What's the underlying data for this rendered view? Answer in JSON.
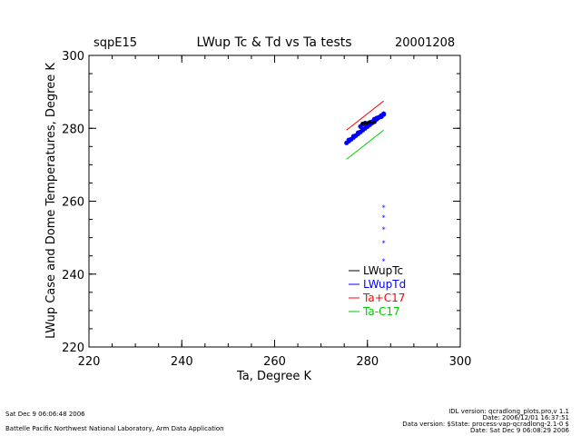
{
  "header": {
    "site": "sqpE15",
    "title": "LWup Tc & Td vs Ta tests",
    "date": "20001208"
  },
  "footer": {
    "left_line1": "Sat Dec  9 06:06:48 2006",
    "left_line2": "Battelle Pacific Northwest National Laboratory, Arm Data Application",
    "right_line1": "IDL version: qcradlong_plots.pro,v 1.1",
    "right_line2": "Date: 2006/12/01 16:37:51",
    "right_line3": "Data version: $State: process-vap-qcradlong-2.1-0 $",
    "right_line4": "Date: Sat Dec  9 06:08:29 2006"
  },
  "colors": {
    "tc": "#000000",
    "td": "#0000ff",
    "ta_plus": "#ff0000",
    "ta_minus": "#00cc00"
  },
  "chart_data": {
    "type": "scatter",
    "xlabel": "Ta, Degree K",
    "ylabel": "LWup Case and Dome Temperatures, Degree K",
    "xlim": [
      220,
      300
    ],
    "ylim": [
      220,
      300
    ],
    "xticks": [
      "220",
      "240",
      "260",
      "280",
      "300"
    ],
    "yticks": [
      "220",
      "240",
      "260",
      "280",
      "300"
    ],
    "grid": false,
    "legend_position": "lower-right",
    "series": [
      {
        "name": "LWupTc",
        "color": "#000000",
        "mode": "markers",
        "x": [
          279.0,
          279.5,
          280.0,
          280.5,
          281.0,
          281.5
        ],
        "y": [
          281.2,
          281.4,
          281.3,
          281.6,
          281.5,
          281.8
        ]
      },
      {
        "name": "LWupTd",
        "color": "#0000ff",
        "mode": "markers",
        "x": [
          275.5,
          276.0,
          276.5,
          277.0,
          277.5,
          278.0,
          278.5,
          279.0,
          279.5,
          280.0,
          280.5,
          281.0,
          281.5,
          282.0,
          282.5,
          283.0,
          283.5,
          276.0,
          277.0,
          278.0,
          279.0,
          280.0,
          281.0,
          282.0,
          283.0,
          278.5,
          279.5,
          280.5,
          281.5,
          282.5,
          283.5,
          283.5,
          283.5,
          283.5,
          283.5,
          283.5
        ],
        "y": [
          276.0,
          276.5,
          277.0,
          277.5,
          278.0,
          278.5,
          279.0,
          279.5,
          280.0,
          280.5,
          281.0,
          281.5,
          282.0,
          282.5,
          283.0,
          283.5,
          284.0,
          276.8,
          277.8,
          278.8,
          279.8,
          280.8,
          281.8,
          282.8,
          283.2,
          280.5,
          281.2,
          281.0,
          282.5,
          283.0,
          283.8,
          258.3,
          255.5,
          252.3,
          248.5,
          243.5
        ]
      },
      {
        "name": "Ta+C17",
        "color": "#ff0000",
        "mode": "line",
        "x": [
          275.5,
          283.5
        ],
        "y": [
          279.5,
          287.5
        ]
      },
      {
        "name": "Ta-C17",
        "color": "#00cc00",
        "mode": "line",
        "x": [
          275.5,
          283.5
        ],
        "y": [
          271.5,
          279.5
        ]
      }
    ]
  }
}
